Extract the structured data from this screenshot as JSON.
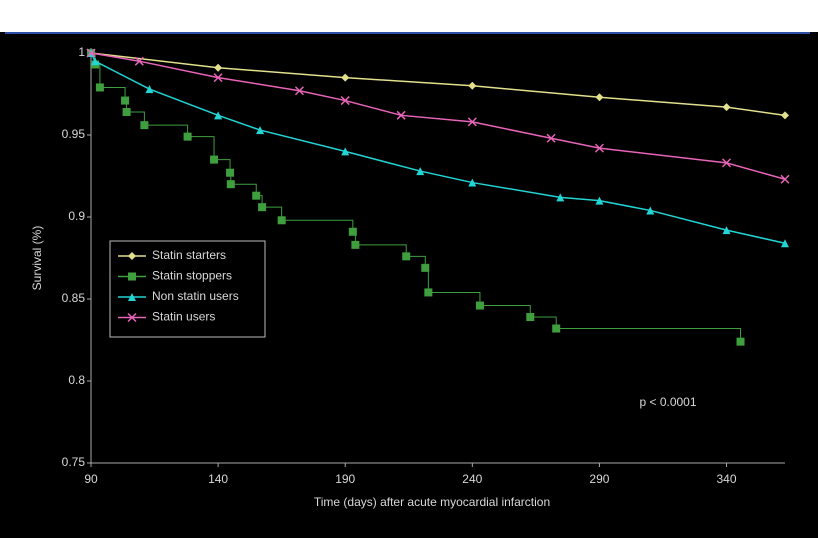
{
  "chart_data": {
    "type": "line",
    "y_label": "Survival (%)",
    "x_label": "Time (days) after acute myocardial infarction",
    "annotation": "p < 0.0001",
    "xlim": [
      90,
      363
    ],
    "xticks": [
      90,
      140,
      190,
      240,
      290,
      340
    ],
    "ylim": [
      0.75,
      1
    ],
    "yticks": [
      1,
      0.95,
      0.9,
      0.85,
      0.8,
      0.75
    ],
    "grid": false,
    "legend": "left",
    "series": [
      {
        "name": "Statin starters",
        "color": "#e2e08c",
        "marker": "diamond",
        "step": false,
        "x": [
          90,
          140,
          190,
          240,
          290,
          340,
          363
        ],
        "values": [
          1.0,
          0.991,
          0.985,
          0.98,
          0.973,
          0.967,
          0.962
        ]
      },
      {
        "name": "Statin stoppers",
        "color": "#3f9f3f",
        "marker": "square",
        "step": true,
        "x": [
          90,
          91.6,
          93.5,
          103.4,
          104,
          111,
          128,
          138.4,
          144.7,
          145,
          155,
          157.3,
          165,
          193,
          194,
          214,
          221.5,
          222.7,
          243,
          262.8,
          273,
          345.5
        ],
        "values": [
          1.0,
          0.993,
          0.979,
          0.971,
          0.964,
          0.956,
          0.949,
          0.935,
          0.927,
          0.92,
          0.913,
          0.906,
          0.898,
          0.891,
          0.883,
          0.876,
          0.869,
          0.854,
          0.846,
          0.839,
          0.832,
          0.824
        ]
      },
      {
        "name": "Non statin users",
        "color": "#22d4d4",
        "marker": "triangle",
        "step": false,
        "x": [
          90,
          91.6,
          113,
          140,
          156.5,
          190,
          219.5,
          240,
          274.6,
          290,
          310,
          340,
          363
        ],
        "values": [
          1.0,
          0.995,
          0.978,
          0.962,
          0.953,
          0.94,
          0.928,
          0.921,
          0.912,
          0.91,
          0.904,
          0.892,
          0.884
        ]
      },
      {
        "name": "Statin users",
        "color": "#e864b8",
        "marker": "cross",
        "step": false,
        "x": [
          90,
          109,
          140,
          172,
          190,
          212,
          240,
          271,
          290,
          340,
          363
        ],
        "values": [
          1.0,
          0.995,
          0.985,
          0.977,
          0.971,
          0.962,
          0.958,
          0.948,
          0.942,
          0.933,
          0.923
        ]
      }
    ]
  }
}
